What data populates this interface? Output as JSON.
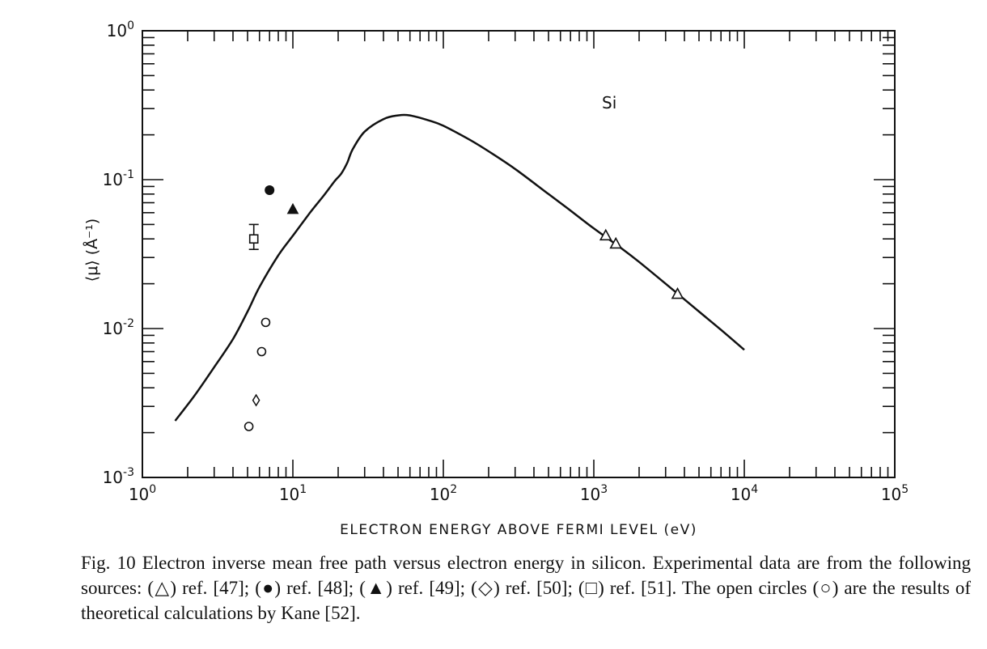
{
  "chart_data": {
    "type": "scatter",
    "title": "",
    "xlabel": "ELECTRON ENERGY ABOVE FERMI LEVEL (eV)",
    "ylabel": "⟨μ⟩ (Å⁻¹)",
    "xscale": "log",
    "yscale": "log",
    "xlim": [
      1,
      100000
    ],
    "ylim": [
      0.001,
      1
    ],
    "grid": false,
    "annotation": "Si",
    "x_tick_labels": [
      {
        "value": 1,
        "base": "10",
        "exp": "0"
      },
      {
        "value": 10,
        "base": "10",
        "exp": "1"
      },
      {
        "value": 100,
        "base": "10",
        "exp": "2"
      },
      {
        "value": 1000,
        "base": "10",
        "exp": "3"
      },
      {
        "value": 10000,
        "base": "10",
        "exp": "4"
      },
      {
        "value": 100000,
        "base": "10",
        "exp": "5"
      }
    ],
    "y_tick_labels": [
      {
        "value": 0.001,
        "base": "10",
        "exp": "-3"
      },
      {
        "value": 0.01,
        "base": "10",
        "exp": "-2"
      },
      {
        "value": 0.1,
        "base": "10",
        "exp": "-1"
      },
      {
        "value": 1,
        "base": "10",
        "exp": "0"
      }
    ],
    "curve": {
      "x": [
        1.65,
        2.2,
        3,
        4,
        5,
        6,
        8,
        10,
        13,
        16,
        19,
        21,
        23,
        25,
        30,
        40,
        50,
        60,
        80,
        100,
        150,
        200,
        300,
        500,
        700,
        1000,
        1500,
        2000,
        3000,
        5000,
        7000,
        10000
      ],
      "y": [
        0.0024,
        0.0035,
        0.0055,
        0.0085,
        0.013,
        0.019,
        0.031,
        0.042,
        0.06,
        0.078,
        0.098,
        0.11,
        0.13,
        0.16,
        0.21,
        0.255,
        0.27,
        0.27,
        0.25,
        0.23,
        0.185,
        0.155,
        0.118,
        0.08,
        0.062,
        0.047,
        0.035,
        0.028,
        0.02,
        0.013,
        0.0098,
        0.0072
      ]
    },
    "series": [
      {
        "marker": "open-triangle",
        "points": [
          [
            1200,
            0.042
          ],
          [
            1400,
            0.037
          ],
          [
            3600,
            0.017
          ]
        ]
      },
      {
        "marker": "filled-circle",
        "points": [
          [
            7,
            0.085
          ]
        ]
      },
      {
        "marker": "filled-triangle",
        "points": [
          [
            10,
            0.063
          ]
        ]
      },
      {
        "marker": "open-diamond",
        "points": [
          [
            5.7,
            0.0033
          ]
        ]
      },
      {
        "marker": "open-square",
        "points": [
          [
            5.5,
            0.04
          ]
        ],
        "error": [
          0.034,
          0.05
        ]
      },
      {
        "marker": "open-circle",
        "points": [
          [
            5.1,
            0.0022
          ],
          [
            6.2,
            0.007
          ],
          [
            6.6,
            0.011
          ]
        ]
      }
    ]
  },
  "caption": "Fig. 10 Electron inverse mean free path versus electron energy in silicon. Experimental data are from the following sources: (△) ref. [47]; (●) ref. [48]; (▲) ref. [49]; (◇) ref. [50]; (□) ref. [51]. The open circles (○) are the results of theoretical calculations by Kane [52]."
}
